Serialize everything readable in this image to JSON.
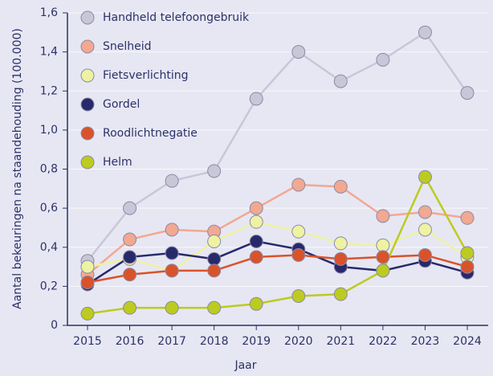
{
  "chart_data": {
    "type": "line",
    "x_label": "Jaar",
    "y_label": "Aantal bekeuringen na staandehouding (100.000)",
    "categories": [
      "2015",
      "2016",
      "2017",
      "2018",
      "2019",
      "2020",
      "2021",
      "2022",
      "2023",
      "2024"
    ],
    "ylim": [
      0,
      1.6
    ],
    "yticks": [
      0,
      {
        "value": 0.2,
        "label": "0,2"
      },
      {
        "value": 0.4,
        "label": "0,4"
      },
      {
        "value": 0.6,
        "label": "0,6"
      },
      {
        "value": 0.8,
        "label": "0,8"
      },
      {
        "value": 1.0,
        "label": "1,0"
      },
      {
        "value": 1.2,
        "label": "1,2"
      },
      {
        "value": 1.4,
        "label": "1,4"
      },
      {
        "value": 1.6,
        "label": "1,6"
      }
    ],
    "grid": true,
    "legend": "upper left",
    "series": [
      {
        "name": "Handheld telefoongebruik",
        "color": "#c7c7d8",
        "values": [
          0.33,
          0.6,
          0.74,
          0.79,
          1.16,
          1.4,
          1.25,
          1.36,
          1.5,
          1.19
        ]
      },
      {
        "name": "Snelheid",
        "color": "#f2a891",
        "values": [
          0.26,
          0.44,
          0.49,
          0.48,
          0.6,
          0.72,
          0.71,
          0.56,
          0.58,
          0.55
        ]
      },
      {
        "name": "Fietsverlichting",
        "color": "#eef2a2",
        "values": [
          0.3,
          0.34,
          0.28,
          0.43,
          0.53,
          0.48,
          0.42,
          0.41,
          0.49,
          0.35
        ]
      },
      {
        "name": "Gordel",
        "color": "#28296b",
        "values": [
          0.21,
          0.35,
          0.37,
          0.34,
          0.43,
          0.39,
          0.3,
          0.28,
          0.33,
          0.27
        ]
      },
      {
        "name": "Roodlichtnegatie",
        "color": "#d9532a",
        "values": [
          0.22,
          0.26,
          0.28,
          0.28,
          0.35,
          0.36,
          0.34,
          0.35,
          0.36,
          0.3
        ]
      },
      {
        "name": "Helm",
        "color": "#bccb1f",
        "values": [
          0.06,
          0.09,
          0.09,
          0.09,
          0.11,
          0.15,
          0.16,
          0.28,
          0.76,
          0.37
        ]
      }
    ]
  }
}
